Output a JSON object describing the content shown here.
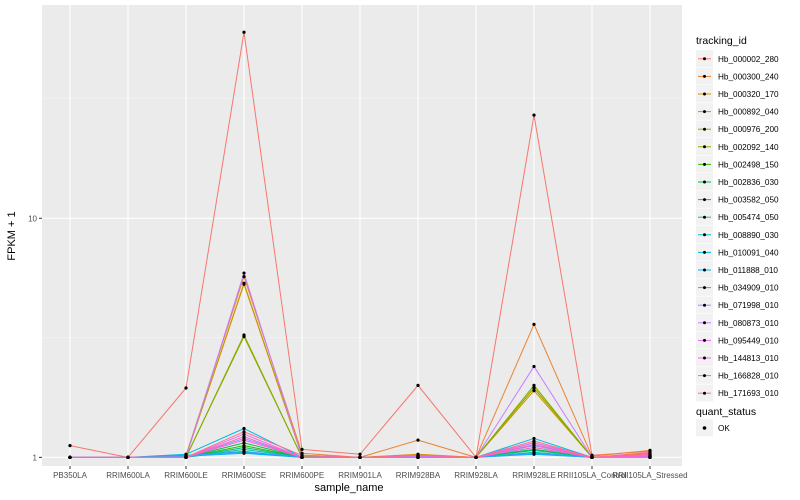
{
  "chart_data": {
    "type": "line",
    "title": "",
    "xlabel": "sample_name",
    "ylabel": "FPKM + 1",
    "y_scale": "log10",
    "ylim": [
      0.92,
      78
    ],
    "y_ticks": [
      1,
      10
    ],
    "grid": true,
    "legend_position": "right",
    "categories": [
      "PB350LA",
      "RRIM600LA",
      "RRIM600LE",
      "RRIM600SE",
      "RRIM600PE",
      "RRIM901LA",
      "RRIM928BA",
      "RRIM928LA",
      "RRIM928LE",
      "RRII105LA_Control",
      "RRII105LA_Stressed"
    ],
    "legend_title": "tracking_id",
    "series": [
      {
        "name": "Hb_000002_280",
        "color": "#F8766D",
        "values": [
          1.12,
          1.0,
          1.95,
          60.0,
          1.08,
          1.03,
          2.0,
          1.0,
          27.0,
          1.02,
          1.06
        ]
      },
      {
        "name": "Hb_000300_240",
        "color": "#EA8331",
        "values": [
          1.0,
          1.0,
          1.02,
          5.7,
          1.04,
          1.0,
          1.18,
          1.0,
          3.6,
          1.01,
          1.07
        ]
      },
      {
        "name": "Hb_000320_170",
        "color": "#D89000",
        "values": [
          1.0,
          1.0,
          1.01,
          5.35,
          1.02,
          1.0,
          1.03,
          1.0,
          1.95,
          1.0,
          1.04
        ]
      },
      {
        "name": "Hb_000892_040",
        "color": "#C09B00",
        "values": [
          1.0,
          1.0,
          1.01,
          5.3,
          1.01,
          1.0,
          1.02,
          1.0,
          1.9,
          1.0,
          1.03
        ]
      },
      {
        "name": "Hb_000976_200",
        "color": "#A3A500",
        "values": [
          1.0,
          1.0,
          1.0,
          3.25,
          1.0,
          1.0,
          1.02,
          1.0,
          1.95,
          1.0,
          1.02
        ]
      },
      {
        "name": "Hb_002092_140",
        "color": "#7CAE00",
        "values": [
          1.0,
          1.0,
          1.0,
          3.2,
          1.0,
          1.0,
          1.01,
          1.0,
          2.0,
          1.0,
          1.02
        ]
      },
      {
        "name": "Hb_002498_150",
        "color": "#39B600",
        "values": [
          1.0,
          1.0,
          1.0,
          1.12,
          1.0,
          1.0,
          1.01,
          1.0,
          1.1,
          1.0,
          1.01
        ]
      },
      {
        "name": "Hb_002836_030",
        "color": "#00BB4E",
        "values": [
          1.0,
          1.0,
          1.0,
          1.15,
          1.0,
          1.0,
          1.01,
          1.0,
          1.08,
          1.0,
          1.01
        ]
      },
      {
        "name": "Hb_003582_050",
        "color": "#00BF7D",
        "values": [
          1.0,
          1.0,
          1.0,
          1.1,
          1.0,
          1.0,
          1.0,
          1.0,
          1.07,
          1.0,
          1.01
        ]
      },
      {
        "name": "Hb_005474_050",
        "color": "#00C1A3",
        "values": [
          1.0,
          1.0,
          1.0,
          1.08,
          1.0,
          1.0,
          1.0,
          1.0,
          1.05,
          1.0,
          1.0
        ]
      },
      {
        "name": "Hb_008890_030",
        "color": "#00BFC4",
        "values": [
          1.0,
          1.0,
          1.02,
          1.05,
          1.0,
          1.0,
          1.0,
          1.0,
          1.15,
          1.0,
          1.0
        ]
      },
      {
        "name": "Hb_010091_040",
        "color": "#00BAE0",
        "values": [
          1.0,
          1.0,
          1.03,
          1.32,
          1.0,
          1.0,
          1.0,
          1.0,
          1.2,
          1.0,
          1.0
        ]
      },
      {
        "name": "Hb_011888_010",
        "color": "#00B0F6",
        "values": [
          1.0,
          1.0,
          1.01,
          1.04,
          1.0,
          1.0,
          1.0,
          1.0,
          1.03,
          1.0,
          1.0
        ]
      },
      {
        "name": "Hb_034909_010",
        "color": "#35A2FF",
        "values": [
          1.0,
          1.0,
          1.01,
          1.06,
          1.0,
          1.0,
          1.0,
          1.0,
          1.04,
          1.0,
          1.0
        ]
      },
      {
        "name": "Hb_071998_010",
        "color": "#9590FF",
        "values": [
          1.0,
          1.0,
          1.0,
          1.2,
          1.0,
          1.0,
          1.0,
          1.0,
          1.12,
          1.0,
          1.0
        ]
      },
      {
        "name": "Hb_080873_010",
        "color": "#C77CFF",
        "values": [
          1.0,
          1.0,
          1.0,
          5.9,
          1.0,
          1.0,
          1.01,
          1.0,
          2.4,
          1.0,
          1.0
        ]
      },
      {
        "name": "Hb_095449_010",
        "color": "#E76BF3",
        "values": [
          1.0,
          1.0,
          1.0,
          1.25,
          1.0,
          1.0,
          1.0,
          1.0,
          1.15,
          1.0,
          1.02
        ]
      },
      {
        "name": "Hb_144813_010",
        "color": "#FA62DB",
        "values": [
          1.0,
          1.0,
          1.0,
          1.18,
          1.0,
          1.0,
          1.0,
          1.0,
          1.1,
          1.0,
          1.01
        ]
      },
      {
        "name": "Hb_166828_010",
        "color": "#FF62BC",
        "values": [
          1.0,
          1.0,
          1.0,
          1.22,
          1.0,
          1.0,
          1.0,
          1.0,
          1.13,
          1.0,
          1.03
        ]
      },
      {
        "name": "Hb_171693_010",
        "color": "#FF6C91",
        "values": [
          1.0,
          1.0,
          1.0,
          1.28,
          1.02,
          1.0,
          1.02,
          1.0,
          1.17,
          1.0,
          1.05
        ]
      }
    ],
    "shape_legend": {
      "title": "quant_status",
      "items": [
        "OK"
      ]
    }
  }
}
